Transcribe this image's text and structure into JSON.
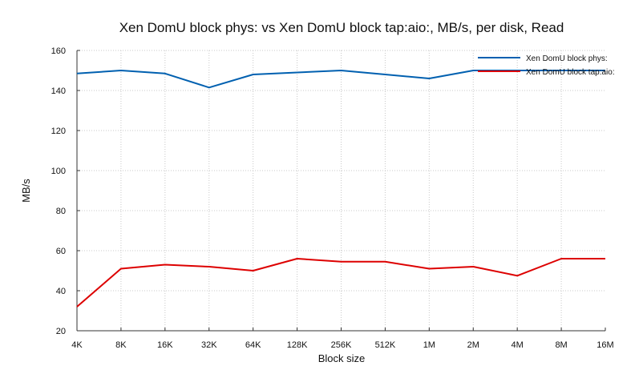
{
  "chart_data": {
    "type": "line",
    "title": "Xen DomU block phys: vs Xen DomU block tap:aio:, MB/s, per disk, Read",
    "xlabel": "Block size",
    "ylabel": "MB/s",
    "ylim": [
      20,
      160
    ],
    "yticks": [
      20,
      40,
      60,
      80,
      100,
      120,
      140,
      160
    ],
    "categories": [
      "4K",
      "8K",
      "16K",
      "32K",
      "64K",
      "128K",
      "256K",
      "512K",
      "1M",
      "2M",
      "4M",
      "8M",
      "16M"
    ],
    "grid": true,
    "legend_position": "top-right",
    "series": [
      {
        "name": "Xen DomU block phys:",
        "color": "#0060b0",
        "values": [
          148.5,
          150,
          148.5,
          141.5,
          148,
          149,
          150,
          148,
          146,
          150,
          150,
          150,
          150
        ]
      },
      {
        "name": "Xen DomU block tap:aio:",
        "color": "#dd0000",
        "values": [
          32,
          51,
          53,
          52,
          50,
          56,
          54.5,
          54.5,
          51,
          52,
          47.5,
          56,
          56
        ]
      }
    ]
  }
}
